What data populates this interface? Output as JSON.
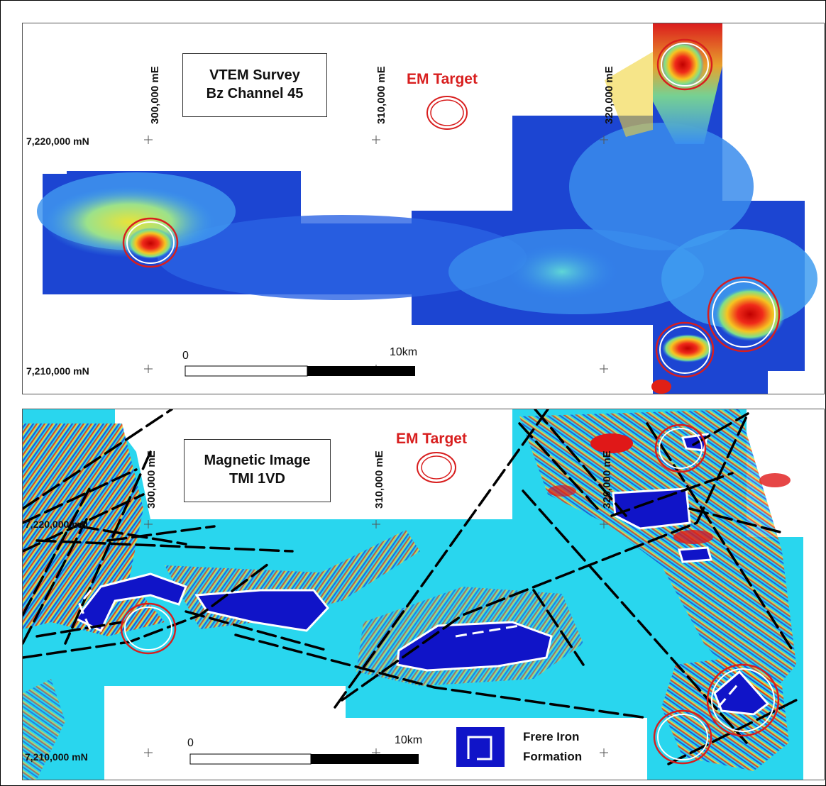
{
  "top_panel": {
    "title_line1": "VTEM Survey",
    "title_line2": "Bz Channel 45",
    "em_target_label": "EM Target",
    "easting_labels": [
      "300,000 mE",
      "310,000 mE",
      "320,000 mE"
    ],
    "northing_labels": [
      "7,220,000 mN",
      "7,210,000 mN"
    ],
    "scale_start": "0",
    "scale_end": "10km"
  },
  "bottom_panel": {
    "title_line1": "Magnetic Image",
    "title_line2": "TMI 1VD",
    "em_target_label": "EM Target",
    "easting_labels": [
      "300,000 mE",
      "310,000 mE",
      "320,000 mE"
    ],
    "northing_labels": [
      "7,220,000 mN",
      "7,210,000 mN"
    ],
    "scale_start": "0",
    "scale_end": "10km",
    "legend_line1": "Frere Iron",
    "legend_line2": "Formation"
  },
  "colors": {
    "em_target": "#d81e1e",
    "survey_low": "#1a3fd0",
    "survey_mid": "#2f8ef0",
    "survey_high": "#e01818",
    "mag_base": "#29d6ee",
    "iron_formation": "#1014c8",
    "fault_line": "#000000"
  }
}
